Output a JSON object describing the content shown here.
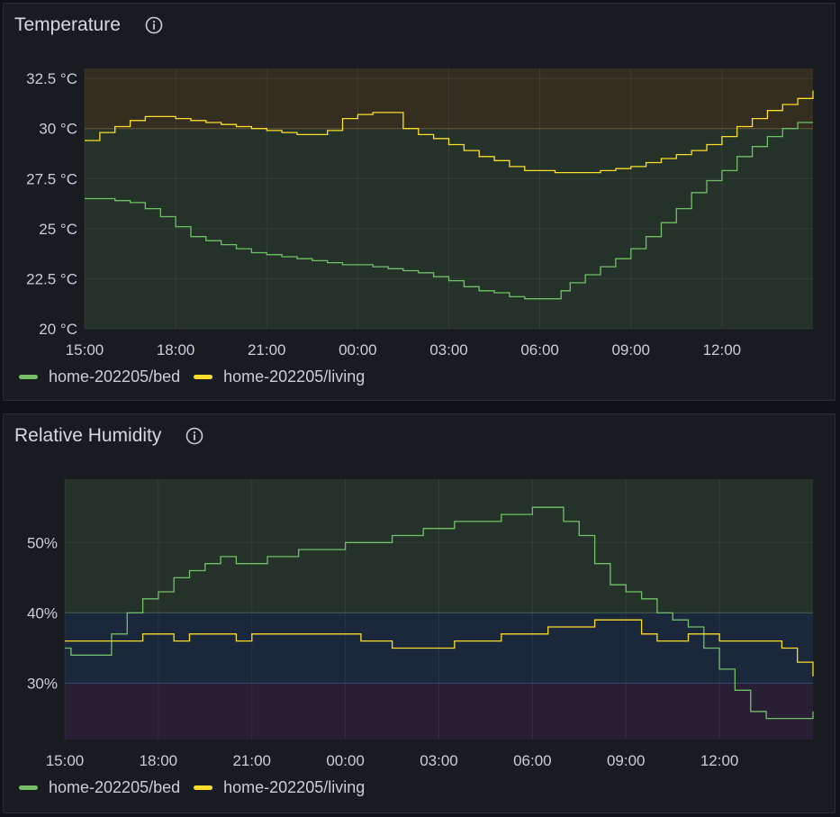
{
  "panels": {
    "temperature": {
      "title": "Temperature",
      "info_icon": "info-circle-icon"
    },
    "humidity": {
      "title": "Relative Humidity",
      "info_icon": "info-circle-icon"
    }
  },
  "colors": {
    "bed": "#73bf69",
    "living": "#fade2a",
    "grid": "#2b2f35",
    "axis_text": "#ccccdc"
  },
  "chart_data": [
    {
      "type": "line",
      "title": "Temperature",
      "unit": "°C",
      "x_ticks": [
        "15:00",
        "18:00",
        "21:00",
        "00:00",
        "03:00",
        "06:00",
        "09:00",
        "12:00"
      ],
      "y_ticks": [
        "20 °C",
        "22.5 °C",
        "25 °C",
        "27.5 °C",
        "30 °C",
        "32.5 °C"
      ],
      "ylim": [
        20,
        33
      ],
      "x_hours": [
        0,
        24
      ],
      "thresholds": [
        {
          "from": 20,
          "to": 30,
          "color": "#73bf69"
        },
        {
          "from": 30,
          "to": 33,
          "color": "#d69e2e"
        }
      ],
      "legend": [
        "home-202205/bed",
        "home-202205/living"
      ],
      "series": [
        {
          "name": "home-202205/bed",
          "color": "#73bf69",
          "x": [
            0,
            0.5,
            1,
            1.5,
            2,
            2.5,
            3,
            3.5,
            4,
            4.5,
            5,
            5.5,
            6,
            6.5,
            7,
            7.5,
            8,
            8.5,
            9,
            9.5,
            10,
            10.5,
            11,
            11.5,
            12,
            12.5,
            13,
            13.5,
            14,
            14.5,
            14.9,
            15.3,
            15.7,
            16,
            16.5,
            17,
            17.5,
            18,
            18.5,
            19,
            19.5,
            20,
            20.5,
            21,
            21.5,
            22,
            22.5,
            23,
            23.5,
            24
          ],
          "y": [
            26.5,
            26.5,
            26.4,
            26.3,
            26.0,
            25.6,
            25.1,
            24.6,
            24.4,
            24.2,
            24.0,
            23.8,
            23.7,
            23.6,
            23.5,
            23.4,
            23.3,
            23.2,
            23.2,
            23.1,
            23.0,
            22.9,
            22.8,
            22.6,
            22.4,
            22.1,
            21.9,
            21.8,
            21.6,
            21.5,
            21.5,
            21.5,
            21.9,
            22.3,
            22.7,
            23.1,
            23.5,
            24.0,
            24.6,
            25.3,
            26.0,
            26.8,
            27.4,
            27.9,
            28.6,
            29.1,
            29.6,
            30.0,
            30.3,
            30.3
          ]
        },
        {
          "name": "home-202205/living",
          "color": "#fade2a",
          "x": [
            0,
            0.5,
            1,
            1.5,
            2,
            2.5,
            3,
            3.5,
            4,
            4.5,
            5,
            5.5,
            6,
            6.5,
            7,
            7.5,
            8,
            8.5,
            9,
            9.5,
            10,
            10.5,
            11,
            11.5,
            12,
            12.5,
            13,
            13.5,
            14,
            14.5,
            15,
            15.5,
            16,
            16.5,
            17,
            17.5,
            18,
            18.5,
            19,
            19.5,
            20,
            20.5,
            21,
            21.5,
            22,
            22.5,
            23,
            23.5,
            24
          ],
          "y": [
            29.4,
            29.8,
            30.1,
            30.4,
            30.6,
            30.6,
            30.5,
            30.4,
            30.3,
            30.2,
            30.1,
            30.0,
            29.9,
            29.8,
            29.7,
            29.7,
            29.9,
            30.5,
            30.7,
            30.8,
            30.8,
            30.0,
            29.7,
            29.5,
            29.2,
            28.9,
            28.6,
            28.4,
            28.1,
            27.9,
            27.9,
            27.8,
            27.8,
            27.8,
            27.9,
            28.0,
            28.1,
            28.3,
            28.5,
            28.7,
            28.9,
            29.2,
            29.6,
            30.1,
            30.5,
            30.9,
            31.2,
            31.5,
            31.9
          ]
        }
      ]
    },
    {
      "type": "line",
      "title": "Relative Humidity",
      "unit": "%",
      "x_ticks": [
        "15:00",
        "18:00",
        "21:00",
        "00:00",
        "03:00",
        "06:00",
        "09:00",
        "12:00"
      ],
      "y_ticks": [
        "30%",
        "40%",
        "50%"
      ],
      "ylim": [
        22,
        59
      ],
      "x_hours": [
        0,
        24
      ],
      "thresholds": [
        {
          "from": 22,
          "to": 30,
          "color": "#8f3bb8"
        },
        {
          "from": 30,
          "to": 40,
          "color": "#3274d9"
        },
        {
          "from": 40,
          "to": 59,
          "color": "#73bf69"
        }
      ],
      "legend": [
        "home-202205/bed",
        "home-202205/living"
      ],
      "series": [
        {
          "name": "home-202205/bed",
          "color": "#73bf69",
          "x": [
            0,
            0.2,
            0.5,
            1,
            1.5,
            2,
            2.5,
            3,
            3.5,
            4,
            4.5,
            5,
            5.5,
            6,
            6.5,
            7,
            7.5,
            8,
            8.5,
            9,
            9.5,
            10,
            10.5,
            11,
            11.5,
            12,
            12.5,
            13,
            13.5,
            14,
            14.5,
            15,
            15.5,
            16,
            16.5,
            17,
            17.5,
            18,
            18.5,
            19,
            19.5,
            20,
            20.5,
            21,
            21.5,
            22,
            22.5,
            23,
            23.5,
            24
          ],
          "y": [
            35,
            34,
            34,
            34,
            37,
            40,
            42,
            43,
            45,
            46,
            47,
            48,
            47,
            47,
            48,
            48,
            49,
            49,
            49,
            50,
            50,
            50,
            51,
            51,
            52,
            52,
            53,
            53,
            53,
            54,
            54,
            55,
            55,
            53,
            51,
            47,
            44,
            43,
            42,
            40,
            39,
            38,
            35,
            32,
            29,
            26,
            25,
            25,
            25,
            26
          ]
        },
        {
          "name": "home-202205/living",
          "color": "#fade2a",
          "x": [
            0,
            0.5,
            1,
            1.5,
            2,
            2.5,
            3,
            3.5,
            4,
            4.5,
            5,
            5.5,
            6,
            6.5,
            7,
            7.5,
            8,
            8.5,
            9,
            9.5,
            10,
            10.5,
            11,
            11.5,
            12,
            12.5,
            13,
            13.5,
            14,
            14.5,
            15,
            15.5,
            16,
            16.5,
            17,
            17.5,
            18,
            18.5,
            19,
            19.5,
            20,
            20.5,
            21,
            21.5,
            22,
            22.5,
            23,
            23.5,
            24
          ],
          "y": [
            36,
            36,
            36,
            36,
            36,
            37,
            37,
            36,
            37,
            37,
            37,
            36,
            37,
            37,
            37,
            37,
            37,
            37,
            37,
            36,
            36,
            35,
            35,
            35,
            35,
            36,
            36,
            36,
            37,
            37,
            37,
            38,
            38,
            38,
            39,
            39,
            39,
            37,
            36,
            36,
            37,
            37,
            36,
            36,
            36,
            36,
            35,
            33,
            31
          ]
        }
      ]
    }
  ]
}
